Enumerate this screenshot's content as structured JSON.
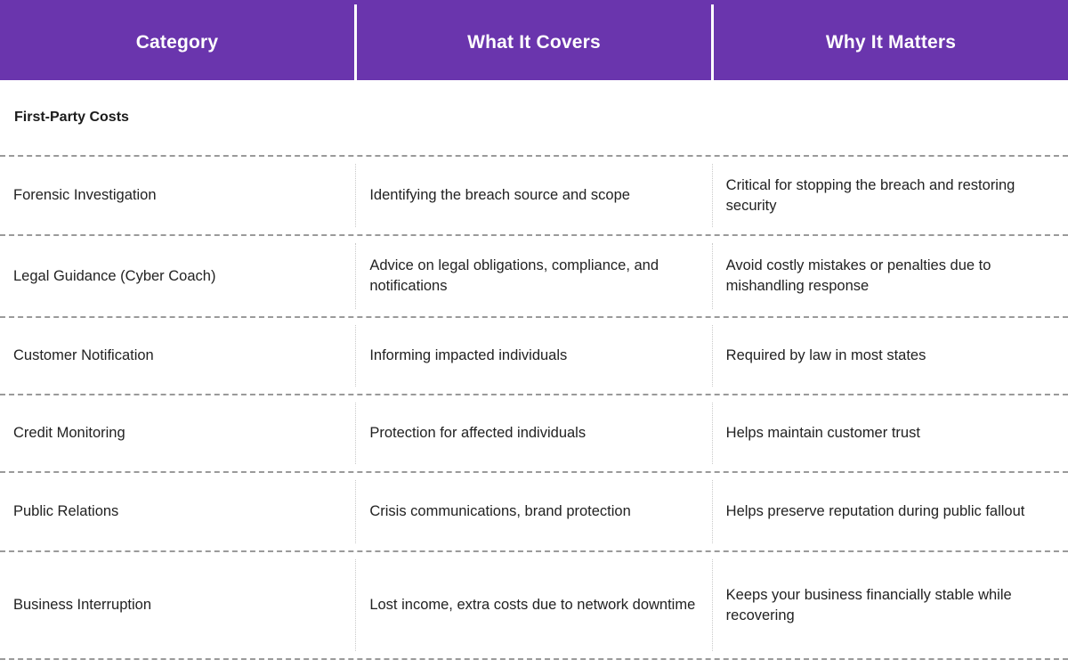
{
  "header": {
    "col1": "Category",
    "col2": "What It Covers",
    "col3": "Why It Matters"
  },
  "section_title": "First-Party Costs",
  "rows": [
    {
      "category": "Forensic Investigation",
      "covers": "Identifying the breach source and scope",
      "matters": "Critical for stopping the breach and restoring security"
    },
    {
      "category": "Legal Guidance (Cyber Coach)",
      "covers": "Advice on legal obligations, compliance, and notifications",
      "matters": "Avoid costly mistakes or penalties due to mishandling response"
    },
    {
      "category": "Customer Notification",
      "covers": "Informing impacted individuals",
      "matters": "Required by law in most states"
    },
    {
      "category": "Credit Monitoring",
      "covers": "Protection for affected individuals",
      "matters": "Helps maintain customer trust"
    },
    {
      "category": "Public Relations",
      "covers": "Crisis communications, brand protection",
      "matters": "Helps preserve reputation during public fallout"
    },
    {
      "category": "Business Interruption",
      "covers": "Lost income, extra costs due to network downtime",
      "matters": "Keeps your business financially stable while recovering"
    }
  ],
  "colors": {
    "header_bg": "#6a35ad",
    "header_text": "#ffffff",
    "divider": "#9a9a9a"
  }
}
